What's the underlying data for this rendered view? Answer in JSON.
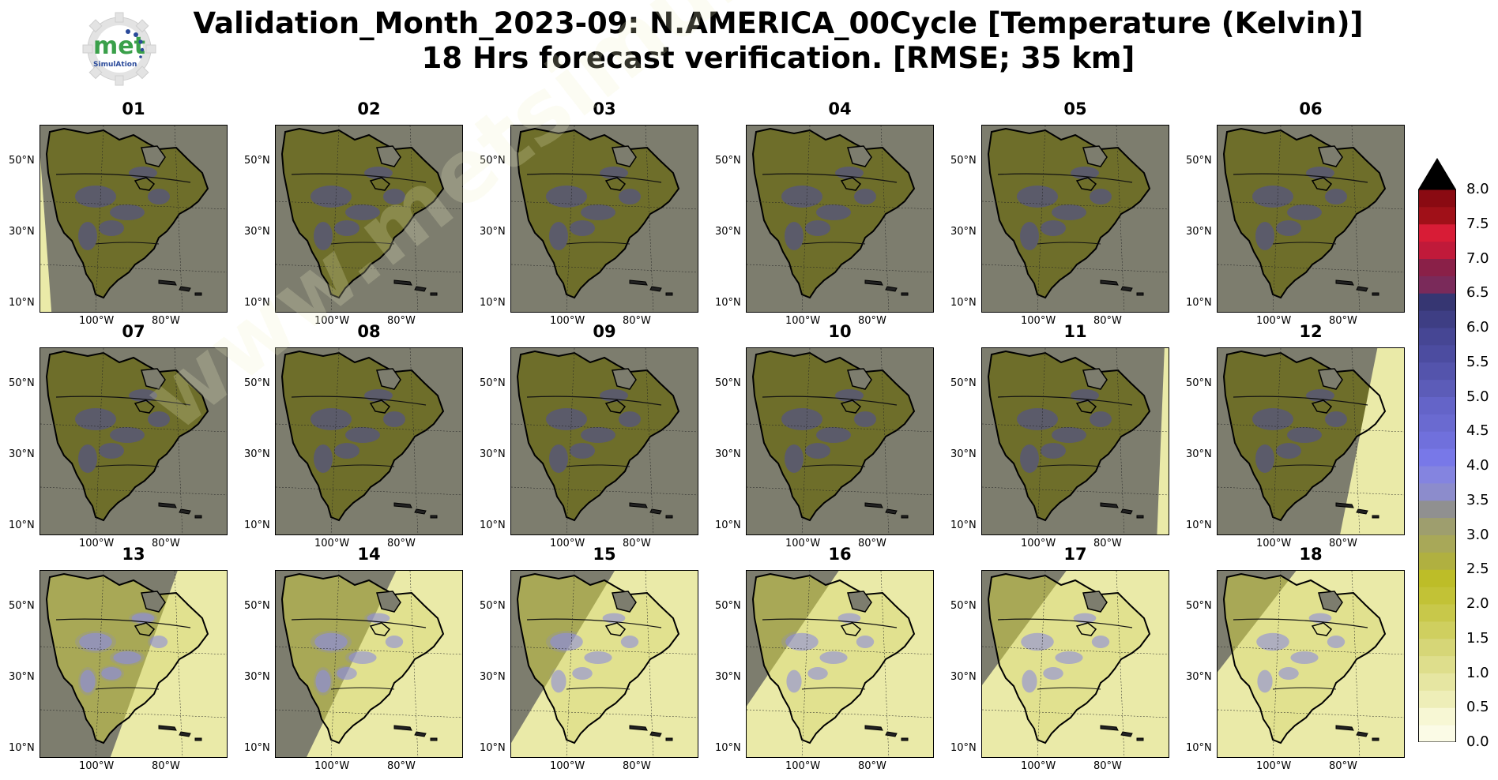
{
  "title": {
    "line1": "Validation_Month_2023-09: N.AMERICA_00Cycle [Temperature (Kelvin)]",
    "line2": "18 Hrs forecast verification.  [RMSE; 35 km]"
  },
  "logo": {
    "word": "met",
    "sub": "SimulAtion"
  },
  "watermark": "www.metsimulation.com",
  "colors": {
    "land_dark": "#6e6e2a",
    "land_mid": "#7a7a33",
    "ocean_gray": "#7d7d6e",
    "error_blue": "#4c4c9e",
    "light_field": "#eaeaa8",
    "light_field2": "#d8d87a",
    "coast": "#000000"
  },
  "chart_data": {
    "type": "heatmap",
    "panels": [
      {
        "label": "01",
        "light_fraction": 0.05
      },
      {
        "label": "02",
        "light_fraction": 0.0
      },
      {
        "label": "03",
        "light_fraction": 0.0
      },
      {
        "label": "04",
        "light_fraction": 0.0
      },
      {
        "label": "05",
        "light_fraction": 0.0
      },
      {
        "label": "06",
        "light_fraction": 0.0
      },
      {
        "label": "07",
        "light_fraction": 0.0
      },
      {
        "label": "08",
        "light_fraction": 0.0
      },
      {
        "label": "09",
        "light_fraction": 0.0
      },
      {
        "label": "10",
        "light_fraction": 0.0
      },
      {
        "label": "11",
        "light_fraction": 0.05
      },
      {
        "label": "12",
        "light_fraction": 0.25
      },
      {
        "label": "13",
        "light_fraction": 0.45
      },
      {
        "label": "14",
        "light_fraction": 0.6
      },
      {
        "label": "15",
        "light_fraction": 0.75
      },
      {
        "label": "16",
        "light_fraction": 0.85
      },
      {
        "label": "17",
        "light_fraction": 0.92
      },
      {
        "label": "18",
        "light_fraction": 0.97
      }
    ],
    "lat_ticks": [
      "50°N",
      "30°N",
      "10°N"
    ],
    "lon_ticks": [
      "100°W",
      "80°W"
    ],
    "colorbar": {
      "ticks": [
        "0.0",
        "0.5",
        "1.0",
        "1.5",
        "2.0",
        "2.5",
        "3.0",
        "3.5",
        "4.0",
        "4.5",
        "5.0",
        "5.5",
        "6.0",
        "6.5",
        "7.0",
        "7.5",
        "8.0"
      ],
      "levels": [
        0.0,
        0.25,
        0.5,
        0.75,
        1.0,
        1.25,
        1.5,
        1.75,
        2.0,
        2.25,
        2.5,
        2.75,
        3.0,
        3.25,
        3.5,
        3.75,
        4.0,
        4.25,
        4.5,
        4.75,
        5.0,
        5.25,
        5.5,
        5.75,
        6.0,
        6.25,
        6.5,
        6.75,
        7.0,
        7.25,
        7.5,
        7.75,
        8.0
      ],
      "colors": [
        "#fbfbe6",
        "#f7f7d4",
        "#eeeeb8",
        "#e6e6a2",
        "#dede8c",
        "#d6d677",
        "#cfcf5f",
        "#c8c84a",
        "#c2c236",
        "#bdbd28",
        "#b0b040",
        "#a8a858",
        "#9e9e6e",
        "#909090",
        "#8c8ccc",
        "#8484e0",
        "#7878e8",
        "#7070dc",
        "#6a6ad0",
        "#6464c8",
        "#5c5cb8",
        "#5454ac",
        "#4c4ca0",
        "#464694",
        "#3e3e84",
        "#363672",
        "#7a2a5a",
        "#8a2048",
        "#c01a3a",
        "#d81c36",
        "#a01018",
        "#8a0a12"
      ],
      "extend": "max",
      "min": 0.0,
      "max": 8.0
    }
  }
}
